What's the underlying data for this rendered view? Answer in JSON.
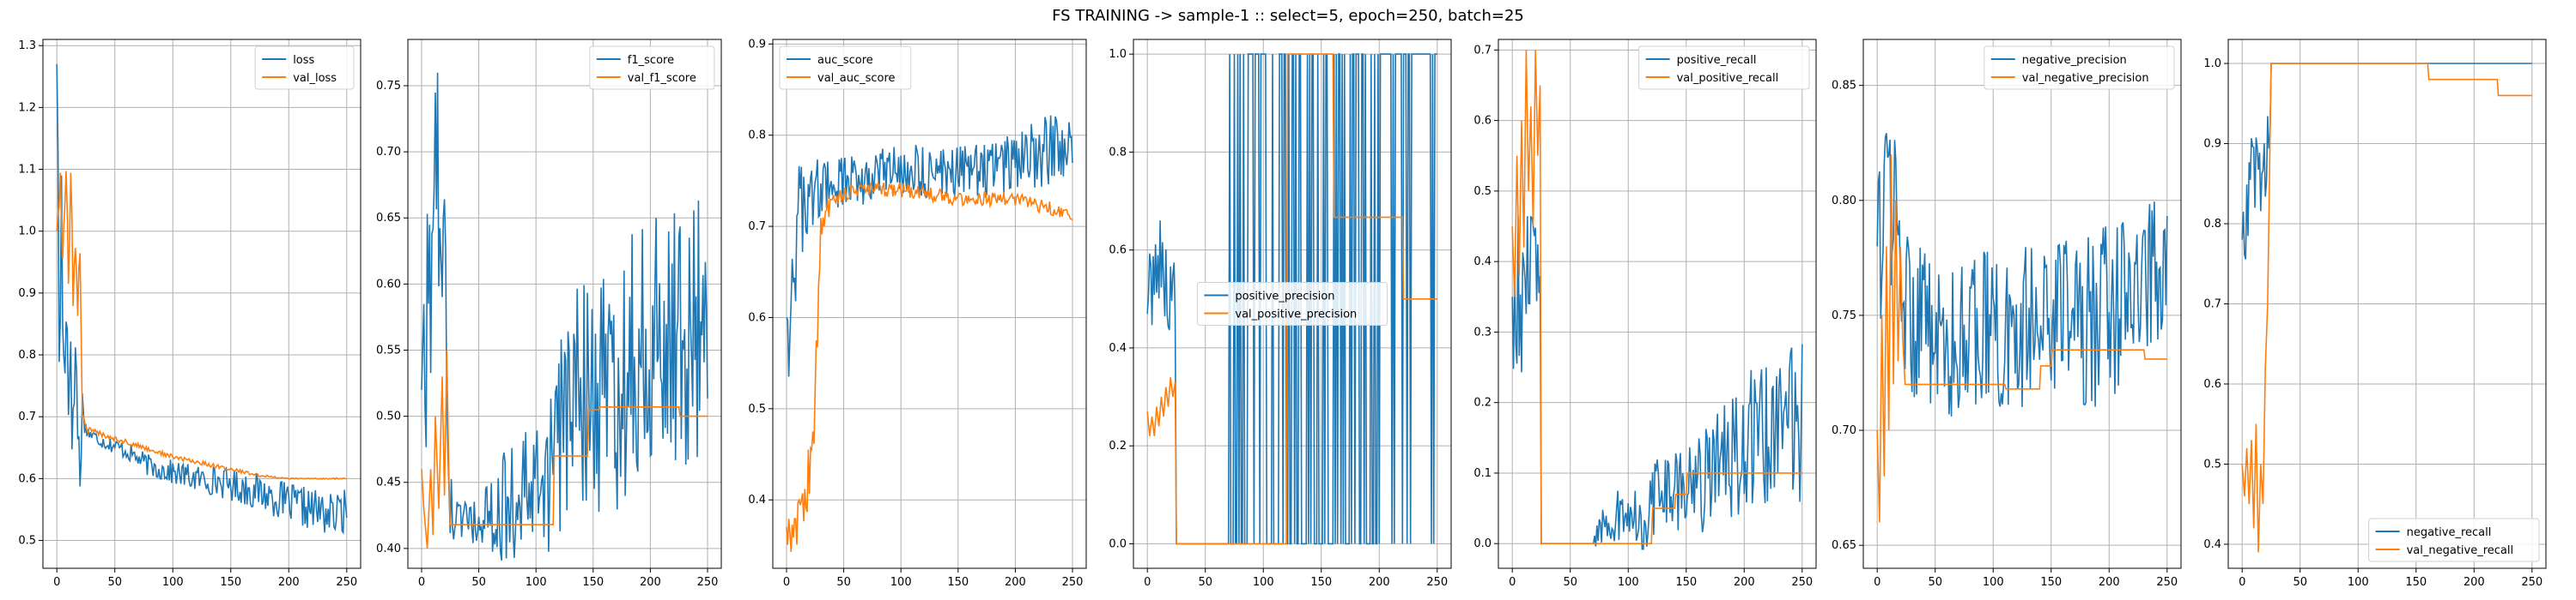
{
  "figure_title": "FS TRAINING -> sample-1 :: select=5, epoch=250, batch=25",
  "colors": {
    "train": "#1f77b4",
    "val": "#ff7f0e",
    "grid": "#b0b0b0"
  },
  "chart_data": [
    {
      "type": "line",
      "id": "loss",
      "xlim": [
        -12,
        262
      ],
      "ylim": [
        0.455,
        1.31
      ],
      "xticks": [
        0,
        50,
        100,
        150,
        200,
        250
      ],
      "yticks": [
        0.5,
        0.6,
        0.7,
        0.8,
        0.9,
        1.0,
        1.1,
        1.2,
        1.3
      ],
      "legend_loc": "top-right",
      "grid": true,
      "series": [
        {
          "name": "loss",
          "role": "train",
          "profile": "noisy",
          "x": [
            0,
            2,
            4,
            6,
            8,
            10,
            12,
            14,
            16,
            18,
            20,
            22,
            25,
            30,
            40,
            60,
            80,
            100,
            120,
            140,
            160,
            180,
            200,
            220,
            240,
            250
          ],
          "y": [
            1.27,
            0.8,
            1.03,
            0.75,
            0.95,
            0.7,
            0.9,
            0.62,
            0.85,
            0.67,
            0.61,
            0.72,
            0.68,
            0.67,
            0.66,
            0.645,
            0.62,
            0.61,
            0.6,
            0.595,
            0.585,
            0.575,
            0.56,
            0.55,
            0.54,
            0.55
          ],
          "noise": [
            0.14,
            0.14,
            0.14,
            0.14,
            0.14,
            0.14,
            0.14,
            0.12,
            0.1,
            0.08,
            0.05,
            0.03,
            0.015,
            0.012,
            0.012,
            0.015,
            0.018,
            0.02,
            0.022,
            0.025,
            0.028,
            0.03,
            0.032,
            0.035,
            0.035,
            0.035
          ]
        },
        {
          "name": "val_loss",
          "role": "val",
          "profile": "noisy",
          "x": [
            0,
            3,
            5,
            8,
            10,
            12,
            14,
            16,
            18,
            20,
            22,
            25,
            50,
            100,
            150,
            175,
            200,
            250
          ],
          "y": [
            1.0,
            1.09,
            0.95,
            1.08,
            0.9,
            1.13,
            0.88,
            0.98,
            0.86,
            0.98,
            0.7,
            0.68,
            0.665,
            0.635,
            0.615,
            0.605,
            0.6,
            0.6
          ],
          "noise": [
            0.04,
            0.04,
            0.04,
            0.04,
            0.04,
            0.04,
            0.04,
            0.03,
            0.03,
            0.02,
            0.01,
            0.005,
            0.004,
            0.004,
            0.003,
            0.002,
            0.001,
            0.001
          ]
        }
      ]
    },
    {
      "type": "line",
      "id": "f1",
      "xlim": [
        -12,
        262
      ],
      "ylim": [
        0.385,
        0.785
      ],
      "xticks": [
        0,
        50,
        100,
        150,
        200,
        250
      ],
      "yticks": [
        0.4,
        0.45,
        0.5,
        0.55,
        0.6,
        0.65,
        0.7,
        0.75
      ],
      "legend_loc": "top-right",
      "grid": true,
      "series": [
        {
          "name": "f1_score",
          "role": "train",
          "profile": "noisy",
          "x": [
            0,
            5,
            10,
            15,
            20,
            25,
            30,
            40,
            50,
            60,
            80,
            100,
            115,
            125,
            150,
            175,
            200,
            225,
            250
          ],
          "y": [
            0.52,
            0.57,
            0.63,
            0.67,
            0.6,
            0.43,
            0.42,
            0.42,
            0.42,
            0.42,
            0.44,
            0.44,
            0.46,
            0.5,
            0.52,
            0.53,
            0.56,
            0.56,
            0.57
          ],
          "noise": [
            0.09,
            0.09,
            0.1,
            0.1,
            0.08,
            0.03,
            0.02,
            0.02,
            0.02,
            0.03,
            0.05,
            0.05,
            0.06,
            0.08,
            0.1,
            0.1,
            0.1,
            0.1,
            0.1
          ]
        },
        {
          "name": "val_f1_score",
          "role": "val",
          "profile": "steps",
          "x": [
            0,
            2,
            5,
            8,
            10,
            12,
            15,
            18,
            20,
            22,
            24,
            25,
            115,
            116,
            145,
            146,
            155,
            156,
            225,
            226,
            250
          ],
          "y": [
            0.46,
            0.43,
            0.4,
            0.46,
            0.41,
            0.5,
            0.43,
            0.53,
            0.44,
            0.55,
            0.45,
            0.418,
            0.418,
            0.47,
            0.47,
            0.505,
            0.505,
            0.507,
            0.507,
            0.5,
            0.5
          ]
        }
      ]
    },
    {
      "type": "line",
      "id": "auc",
      "xlim": [
        -12,
        262
      ],
      "ylim": [
        0.325,
        0.905
      ],
      "xticks": [
        0,
        50,
        100,
        150,
        200,
        250
      ],
      "yticks": [
        0.4,
        0.5,
        0.6,
        0.7,
        0.8,
        0.9
      ],
      "legend_loc": "top-left",
      "grid": true,
      "series": [
        {
          "name": "auc_score",
          "role": "train",
          "profile": "noisy",
          "x": [
            0,
            5,
            10,
            15,
            20,
            25,
            30,
            50,
            100,
            150,
            200,
            225,
            250
          ],
          "y": [
            0.6,
            0.65,
            0.7,
            0.72,
            0.73,
            0.74,
            0.74,
            0.75,
            0.76,
            0.76,
            0.77,
            0.78,
            0.8
          ],
          "noise": [
            0.1,
            0.08,
            0.07,
            0.05,
            0.04,
            0.04,
            0.03,
            0.03,
            0.03,
            0.03,
            0.035,
            0.04,
            0.04
          ]
        },
        {
          "name": "val_auc_score",
          "role": "val",
          "profile": "noisy",
          "x": [
            0,
            5,
            10,
            15,
            20,
            25,
            30,
            40,
            60,
            100,
            150,
            200,
            230,
            250
          ],
          "y": [
            0.37,
            0.36,
            0.38,
            0.4,
            0.42,
            0.5,
            0.7,
            0.73,
            0.74,
            0.74,
            0.73,
            0.73,
            0.72,
            0.71
          ],
          "noise": [
            0.02,
            0.02,
            0.03,
            0.03,
            0.05,
            0.05,
            0.02,
            0.008,
            0.008,
            0.008,
            0.008,
            0.008,
            0.008,
            0.005
          ]
        }
      ]
    },
    {
      "type": "line",
      "id": "ppv",
      "xlim": [
        -12,
        262
      ],
      "ylim": [
        -0.05,
        1.03
      ],
      "xticks": [
        0,
        50,
        100,
        150,
        200,
        250
      ],
      "yticks": [
        0.0,
        0.2,
        0.4,
        0.6,
        0.8,
        1.0
      ],
      "legend_loc": "center",
      "grid": true,
      "series": [
        {
          "name": "positive_precision",
          "role": "train",
          "profile": "binary",
          "x": [
            0,
            5,
            10,
            15,
            20,
            24,
            25,
            70,
            71,
            175,
            176,
            200,
            201,
            250
          ],
          "y": [
            0.5,
            0.55,
            0.6,
            0.55,
            0.5,
            0.5,
            0,
            0,
            1,
            1,
            0.5,
            0.5,
            0.85,
            0.85
          ],
          "noise": [
            0.08,
            0.1,
            0.1,
            0.1,
            0.1,
            0.1,
            0,
            0,
            0,
            0,
            0,
            0,
            0,
            0
          ]
        },
        {
          "name": "val_positive_precision",
          "role": "val",
          "profile": "steps",
          "x": [
            0,
            2,
            4,
            6,
            8,
            10,
            12,
            14,
            16,
            18,
            20,
            22,
            24,
            25,
            120,
            121,
            160,
            161,
            220,
            221,
            250
          ],
          "y": [
            0.27,
            0.22,
            0.26,
            0.22,
            0.28,
            0.24,
            0.3,
            0.26,
            0.32,
            0.28,
            0.34,
            0.3,
            0.33,
            0,
            0,
            1.0,
            1.0,
            0.667,
            0.667,
            0.5,
            0.5
          ]
        }
      ]
    },
    {
      "type": "line",
      "id": "recall",
      "xlim": [
        -12,
        262
      ],
      "ylim": [
        -0.035,
        0.715
      ],
      "xticks": [
        0,
        50,
        100,
        150,
        200,
        250
      ],
      "yticks": [
        0.0,
        0.1,
        0.2,
        0.3,
        0.4,
        0.5,
        0.6,
        0.7
      ],
      "legend_loc": "top-right",
      "grid": true,
      "series": [
        {
          "name": "positive_recall",
          "role": "train",
          "profile": "noisy",
          "x": [
            0,
            5,
            10,
            15,
            20,
            24,
            25,
            70,
            75,
            100,
            115,
            120,
            150,
            175,
            200,
            225,
            250
          ],
          "y": [
            0.35,
            0.38,
            0.35,
            0.4,
            0.38,
            0.3,
            0,
            0,
            0.03,
            0.04,
            0.04,
            0.06,
            0.08,
            0.1,
            0.14,
            0.16,
            0.18
          ],
          "noise": [
            0.12,
            0.12,
            0.12,
            0.12,
            0.12,
            0.1,
            0,
            0,
            0.04,
            0.04,
            0.05,
            0.06,
            0.07,
            0.08,
            0.1,
            0.11,
            0.12
          ]
        },
        {
          "name": "val_positive_recall",
          "role": "val",
          "profile": "steps",
          "x": [
            0,
            2,
            4,
            6,
            8,
            10,
            12,
            14,
            16,
            18,
            20,
            22,
            24,
            25,
            120,
            121,
            140,
            141,
            150,
            151,
            250
          ],
          "y": [
            0.45,
            0.35,
            0.55,
            0.38,
            0.6,
            0.42,
            0.7,
            0.5,
            0.62,
            0.45,
            0.7,
            0.55,
            0.65,
            0,
            0,
            0.05,
            0.05,
            0.07,
            0.07,
            0.1,
            0.1
          ]
        }
      ]
    },
    {
      "type": "line",
      "id": "npv",
      "xlim": [
        -12,
        262
      ],
      "ylim": [
        0.64,
        0.87
      ],
      "xticks": [
        0,
        50,
        100,
        150,
        200,
        250
      ],
      "yticks": [
        0.65,
        0.7,
        0.75,
        0.8,
        0.85
      ],
      "legend_loc": "top-right",
      "grid": true,
      "series": [
        {
          "name": "negative_precision",
          "role": "train",
          "profile": "noisy",
          "x": [
            0,
            5,
            10,
            15,
            20,
            25,
            40,
            60,
            100,
            150,
            200,
            250
          ],
          "y": [
            0.78,
            0.78,
            0.8,
            0.79,
            0.77,
            0.75,
            0.745,
            0.74,
            0.745,
            0.745,
            0.75,
            0.77
          ],
          "noise": [
            0.04,
            0.04,
            0.04,
            0.04,
            0.04,
            0.035,
            0.035,
            0.035,
            0.035,
            0.035,
            0.04,
            0.035
          ]
        },
        {
          "name": "val_negative_precision",
          "role": "val",
          "profile": "steps",
          "x": [
            0,
            2,
            4,
            6,
            8,
            10,
            12,
            14,
            16,
            18,
            20,
            22,
            24,
            25,
            110,
            111,
            140,
            141,
            150,
            151,
            230,
            231,
            250
          ],
          "y": [
            0.7,
            0.66,
            0.75,
            0.68,
            0.78,
            0.7,
            0.82,
            0.72,
            0.8,
            0.73,
            0.78,
            0.74,
            0.72,
            0.72,
            0.72,
            0.718,
            0.718,
            0.728,
            0.728,
            0.735,
            0.735,
            0.731,
            0.731
          ]
        }
      ]
    },
    {
      "type": "line",
      "id": "tnr",
      "xlim": [
        -12,
        262
      ],
      "ylim": [
        0.37,
        1.03
      ],
      "xticks": [
        0,
        50,
        100,
        150,
        200,
        250
      ],
      "yticks": [
        0.4,
        0.5,
        0.6,
        0.7,
        0.8,
        0.9,
        1.0
      ],
      "legend_loc": "bottom-right",
      "grid": true,
      "series": [
        {
          "name": "negative_recall",
          "role": "train",
          "profile": "noisy",
          "x": [
            0,
            5,
            10,
            15,
            20,
            24,
            25,
            250
          ],
          "y": [
            0.78,
            0.84,
            0.86,
            0.87,
            0.88,
            0.92,
            1.0,
            1.0
          ],
          "noise": [
            0.07,
            0.07,
            0.06,
            0.06,
            0.05,
            0.03,
            0,
            0
          ]
        },
        {
          "name": "val_negative_recall",
          "role": "val",
          "profile": "steps",
          "x": [
            0,
            2,
            4,
            6,
            8,
            10,
            12,
            14,
            16,
            18,
            20,
            22,
            24,
            25,
            160,
            161,
            220,
            221,
            250
          ],
          "y": [
            0.5,
            0.46,
            0.52,
            0.45,
            0.53,
            0.42,
            0.55,
            0.39,
            0.5,
            0.45,
            0.62,
            0.7,
            0.9,
            1.0,
            1.0,
            0.98,
            0.98,
            0.96,
            0.96
          ]
        }
      ]
    }
  ]
}
